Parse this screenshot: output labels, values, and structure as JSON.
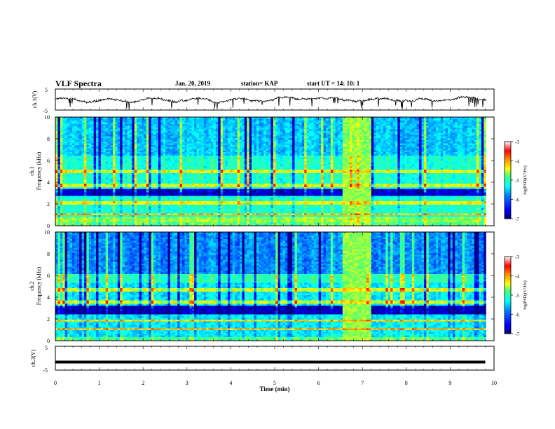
{
  "header": {
    "title": "VLF Spectra",
    "date": "Jan. 20, 2019",
    "station": "station= KAP",
    "start": "start  UT =   14: 10: 1"
  },
  "chart_data": [
    {
      "type": "line",
      "panel": "ch1-waveform",
      "ylabel": "ch.1(V)",
      "ylim": [
        -5,
        5
      ],
      "yticks": [
        "5",
        "-5"
      ],
      "xlim": [
        0,
        10
      ],
      "color": "#000000"
    },
    {
      "type": "heatmap",
      "panel": "ch1-spectrogram",
      "ylabel_line1": "ch.1",
      "ylabel_line2": "Frequency (kHz)",
      "ylim": [
        0,
        10
      ],
      "yticks": [
        "0",
        "2",
        "4",
        "6",
        "8",
        "10"
      ],
      "xlim": [
        0,
        10
      ],
      "colorbar": {
        "label": "log(PSD)(V²/Hz)",
        "range": [
          -7,
          -3
        ],
        "ticks": [
          "-3",
          "-4",
          "-5",
          "-6",
          "-7"
        ]
      },
      "colormap": [
        "#00007f",
        "#0000ff",
        "#0080ff",
        "#00ffff",
        "#40ff80",
        "#ffff00",
        "#ff8000",
        "#ff0000",
        "#ffffff"
      ],
      "bright_interval_min": [
        6.55,
        7.2
      ]
    },
    {
      "type": "heatmap",
      "panel": "ch2-spectrogram",
      "ylabel_line1": "ch.2",
      "ylabel_line2": "Frequency (kHz)",
      "ylim": [
        0,
        10
      ],
      "yticks": [
        "0",
        "2",
        "4",
        "6",
        "8",
        "10"
      ],
      "xlim": [
        0,
        10
      ],
      "colorbar": {
        "label": "log(PSD)(V²/Hz)",
        "range": [
          -7,
          -3
        ],
        "ticks": [
          "-3",
          "-4",
          "-5",
          "-6",
          "-7"
        ]
      },
      "colormap": [
        "#00007f",
        "#0000ff",
        "#0080ff",
        "#00ffff",
        "#40ff80",
        "#ffff00",
        "#ff8000",
        "#ff0000",
        "#ffffff"
      ],
      "bright_interval_min": [
        6.55,
        7.2
      ]
    },
    {
      "type": "line",
      "panel": "ch3-waveform",
      "ylabel": "ch.3(V)",
      "ylim": [
        -5,
        5
      ],
      "yticks": [
        "5",
        "-5"
      ],
      "xlim": [
        0,
        10
      ],
      "x": [
        0,
        9.8
      ],
      "y": [
        -1.6,
        -1.6
      ],
      "color": "#000000"
    }
  ],
  "xaxis": {
    "label": "Time (min)",
    "ticks": [
      "0",
      "1",
      "2",
      "3",
      "4",
      "5",
      "6",
      "7",
      "8",
      "9",
      "10"
    ],
    "data_end_min": 9.82
  }
}
